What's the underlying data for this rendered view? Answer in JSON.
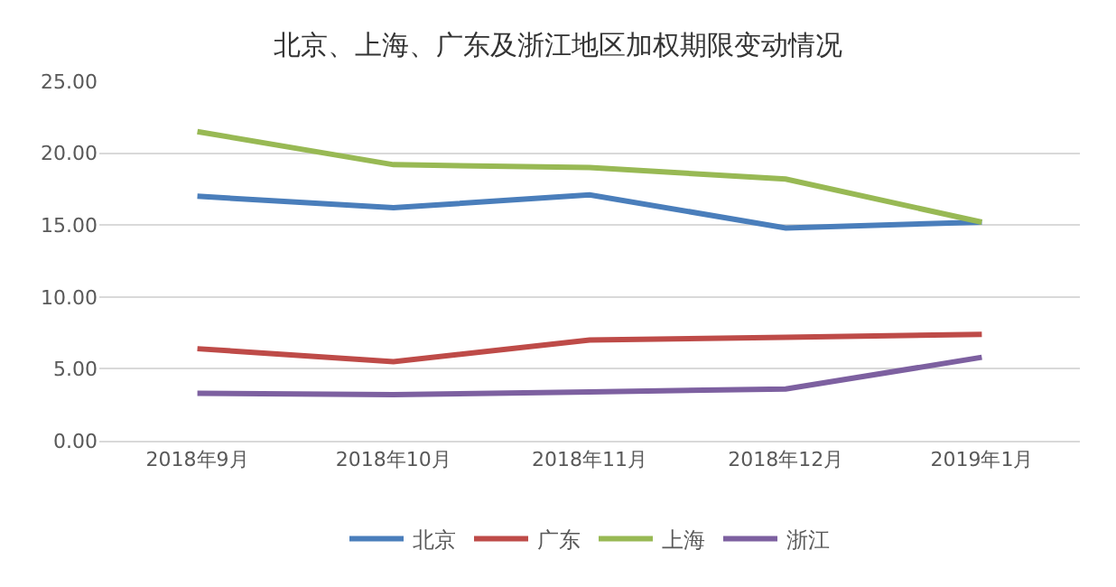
{
  "chart_data": {
    "type": "line",
    "title": "北京、上海、广东及浙江地区加权期限变动情况",
    "categories": [
      "2018年9月",
      "2018年10月",
      "2018年11月",
      "2018年12月",
      "2019年1月"
    ],
    "series": [
      {
        "name": "北京",
        "color": "#4a7ebb",
        "values": [
          17.0,
          16.2,
          17.1,
          14.8,
          15.2
        ]
      },
      {
        "name": "广东",
        "color": "#be4b48",
        "values": [
          6.4,
          5.5,
          7.0,
          7.2,
          7.4
        ]
      },
      {
        "name": "上海",
        "color": "#98b954",
        "values": [
          21.5,
          19.2,
          19.0,
          18.2,
          15.2
        ]
      },
      {
        "name": "浙江",
        "color": "#7d60a0",
        "values": [
          3.3,
          3.2,
          3.4,
          3.6,
          5.8
        ]
      }
    ],
    "ylim": [
      0,
      25
    ],
    "yticks": [
      {
        "value": 0,
        "label": "0.00"
      },
      {
        "value": 5,
        "label": "5.00"
      },
      {
        "value": 10,
        "label": "10.00"
      },
      {
        "value": 15,
        "label": "15.00"
      },
      {
        "value": 20,
        "label": "20.00"
      },
      {
        "value": 25,
        "label": "25.00"
      }
    ],
    "grid": "y",
    "legend": "bottom",
    "marker": "none",
    "line_style": "solid"
  }
}
